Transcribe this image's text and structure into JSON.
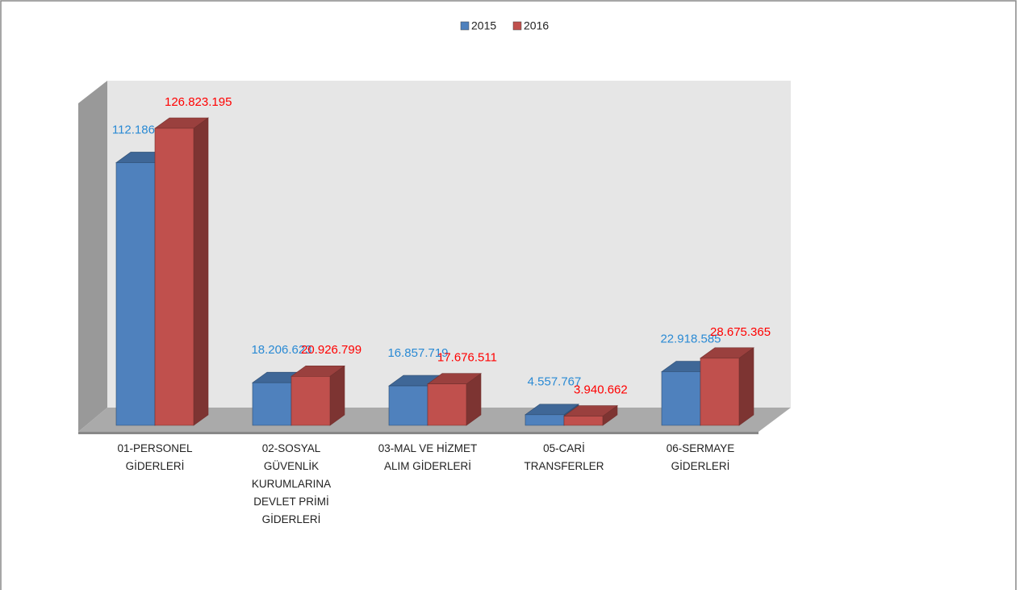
{
  "chart_data": {
    "type": "bar3d",
    "categories": [
      "01-PERSONEL GİDERLERİ",
      "02-SOSYAL GÜVENLİK KURUMLARINA DEVLET PRİMİ GİDERLERİ",
      "03-MAL VE HİZMET ALIM GİDERLERİ",
      "05-CARİ TRANSFERLER",
      "06-SERMAYE GİDERLERİ"
    ],
    "series": [
      {
        "name": "2015",
        "color": "#4f81bd",
        "values": [
          112186230,
          18206623,
          16857719,
          4557767,
          22918585
        ],
        "value_labels": [
          "112.186.230",
          "18.206.623",
          "16.857.719",
          "4.557.767",
          "22.918.585"
        ]
      },
      {
        "name": "2016",
        "color": "#c0504d",
        "values": [
          126823195,
          20926799,
          17676511,
          3940662,
          28675365
        ],
        "value_labels": [
          "126.823.195",
          "20.926.799",
          "17.676.511",
          "3.940.662",
          "28.675.365"
        ]
      }
    ],
    "legend": "top"
  }
}
